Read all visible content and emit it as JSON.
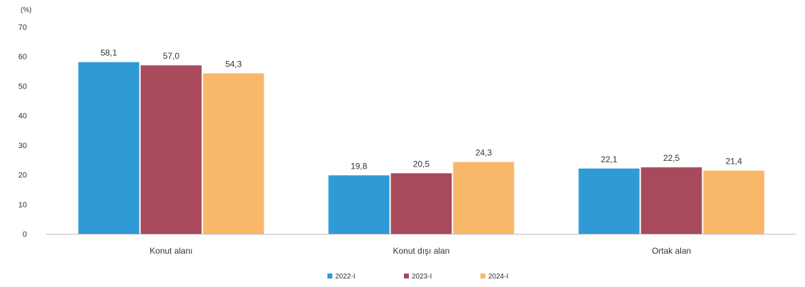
{
  "chart_data": {
    "type": "bar",
    "unit_label": "(%)",
    "categories": [
      "Konut alanı",
      "Konut dışı alan",
      "Ortak alan"
    ],
    "series": [
      {
        "name": "2022-I",
        "color": "#2e9bd6",
        "values": [
          58.1,
          19.8,
          22.1
        ]
      },
      {
        "name": "2023-I",
        "color": "#a84a5c",
        "values": [
          57.0,
          20.5,
          22.5
        ]
      },
      {
        "name": "2024-I",
        "color": "#f9b76a",
        "values": [
          54.3,
          24.3,
          21.4
        ]
      }
    ],
    "value_labels": [
      [
        "58,1",
        "19,8",
        "22,1"
      ],
      [
        "57,0",
        "20,5",
        "22,5"
      ],
      [
        "54,3",
        "24,3",
        "21,4"
      ]
    ],
    "ylim": [
      0,
      70
    ],
    "yticks": [
      0,
      10,
      20,
      30,
      40,
      50,
      60,
      70
    ],
    "grid": false,
    "legend_position": "bottom"
  }
}
